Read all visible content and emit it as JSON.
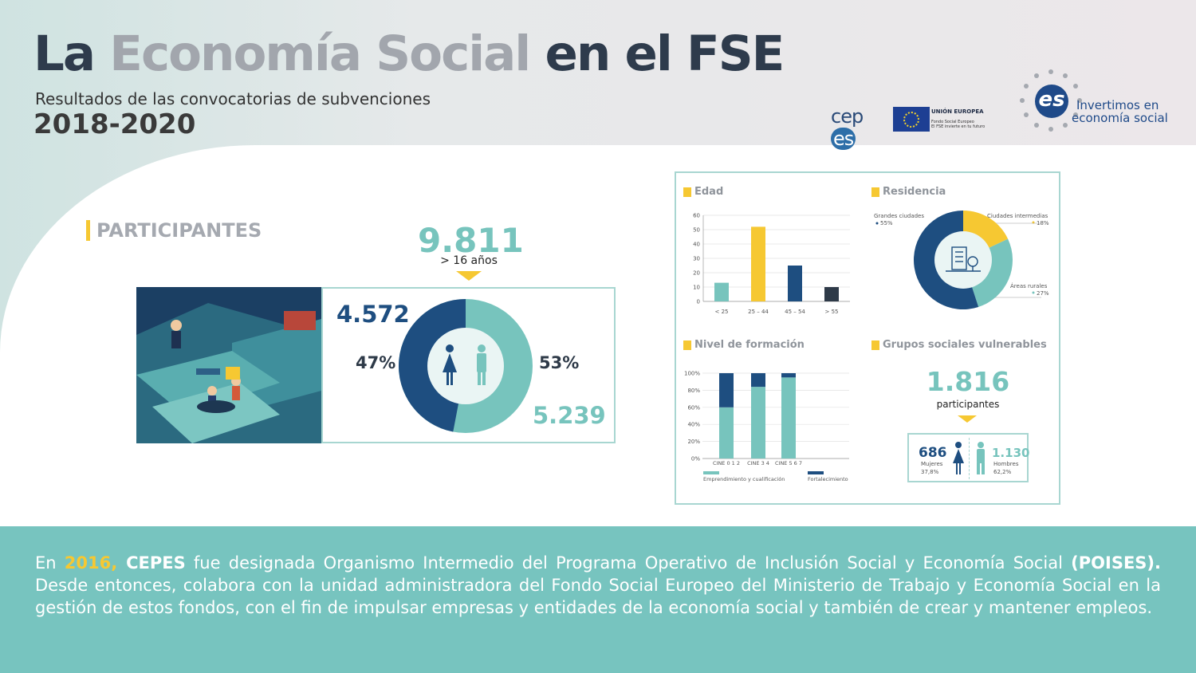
{
  "header": {
    "title_part1": "La",
    "title_part2": "Economía Social",
    "title_part3": "en el FSE",
    "subtitle": "Resultados de las convocatorias de subvenciones",
    "years": "2018-2020"
  },
  "logos": {
    "cepes_text_a": "cep",
    "cepes_text_b": "es",
    "ue_line1": "UNIÓN EUROPEA",
    "ue_line2": "Fondo Social Europeo",
    "ue_line3": "El FSE invierte en tu futuro",
    "es_mark": "es",
    "es_line1": "Invertimos en",
    "es_line2": "economía social"
  },
  "participants": {
    "label": "PARTICIPANTES",
    "total": "9.811",
    "total_sub": "> 16 años",
    "women_count": "4.572",
    "women_pct": "47%",
    "men_pct": "53%",
    "men_count": "5.239",
    "women_share": 47,
    "colors": {
      "women": "#1e4e80",
      "men": "#77c4bd",
      "accent": "#f6c832"
    }
  },
  "edad": {
    "title": "Edad",
    "y_ticks": [
      "60",
      "50",
      "40",
      "30",
      "20",
      "10",
      "0"
    ]
  },
  "residencia": {
    "title": "Residencia",
    "labels": [
      {
        "name": "Grandes ciudades",
        "pct": "55%"
      },
      {
        "name": "Ciudades intermedias",
        "pct": "18%"
      },
      {
        "name": "Áreas rurales",
        "pct": "27%"
      }
    ]
  },
  "formacion": {
    "title": "Nivel de formación",
    "y_ticks": [
      "100%",
      "80%",
      "60%",
      "40%",
      "20%",
      "0%"
    ],
    "legend_a": "Emprendimiento y cualificación",
    "legend_b": "Fortalecimiento"
  },
  "vulnerables": {
    "title": "Grupos sociales vulnerables",
    "total": "1.816",
    "total_sub": "participantes",
    "women_count": "686",
    "women_label": "Mujeres",
    "women_pct": "37,8%",
    "men_count": "1.130",
    "men_label": "Hombres",
    "men_pct": "62,2%"
  },
  "chart_data": [
    {
      "type": "bar",
      "title": "Edad",
      "categories": [
        "< 25",
        "25 – 44",
        "45 – 54",
        "> 55"
      ],
      "values": [
        13,
        52,
        25,
        10
      ],
      "colors": [
        "#77c4bd",
        "#f6c832",
        "#1e4e80",
        "#2e3a48"
      ],
      "ylim": [
        0,
        60
      ],
      "grid": true
    },
    {
      "type": "pie",
      "title": "Residencia",
      "categories": [
        "Grandes ciudades",
        "Ciudades intermedias",
        "Áreas rurales"
      ],
      "values": [
        55,
        18,
        27
      ],
      "colors": [
        "#1e4e80",
        "#f6c832",
        "#77c4bd"
      ]
    },
    {
      "type": "bar",
      "title": "Nivel de formación",
      "stacked": true,
      "categories": [
        "CINE 0 1 2",
        "CINE 3 4",
        "CINE 5 6 7"
      ],
      "series": [
        {
          "name": "Emprendimiento y cualificación",
          "values": [
            60,
            84,
            95
          ],
          "color": "#77c4bd"
        },
        {
          "name": "Fortalecimiento",
          "values": [
            40,
            16,
            5
          ],
          "color": "#1e4e80"
        }
      ],
      "ylim": [
        0,
        100
      ],
      "legend": "bottom",
      "grid": true
    }
  ],
  "footer": {
    "t1": "En ",
    "t2": "2016,",
    "t3": " CEPES",
    "t4": " fue designada Organismo Intermedio del Programa Operativo de Inclusión Social y Economía Social ",
    "t5": "(POISES).",
    "t6": " Desde entonces, colabora con la unidad administradora del Fondo Social Europeo del Ministerio de Trabajo y Economía Social en la gestión de estos fondos, con el fin de impulsar empresas y entidades de la economía social y también de crear y mantener empleos."
  }
}
